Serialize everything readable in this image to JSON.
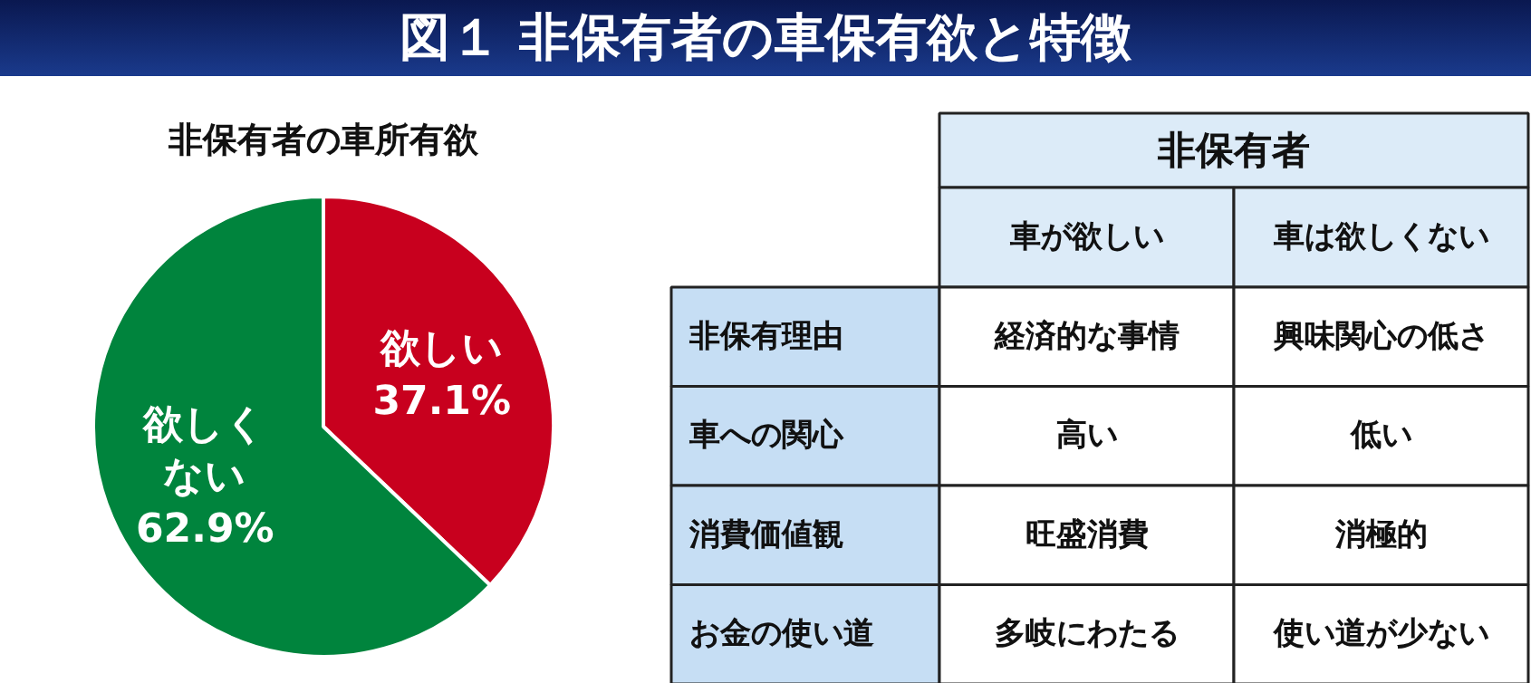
{
  "chart_data": [
    {
      "type": "pie",
      "title": "図１  非保有者の車保有欲と特徴",
      "subtitle": "非保有者の車所有欲",
      "categories": [
        "欲しい",
        "欲しくない"
      ],
      "values": [
        37.1,
        62.9
      ],
      "colors": [
        "#c8001e",
        "#00843d"
      ],
      "value_labels": [
        "37.1%",
        "62.9%"
      ]
    },
    {
      "type": "other",
      "title": "非保有者",
      "categories": [
        "車が欲しい",
        "車は欲しくない"
      ],
      "y_categories": [
        "非保有理由",
        "車への関心",
        "消費価値観",
        "お金の使い道"
      ],
      "cell_labels": [
        [
          "経済的な事情",
          "興味関心の低さ"
        ],
        [
          "高い",
          "低い"
        ],
        [
          "旺盛消費",
          "消極的"
        ],
        [
          "多岐にわたる",
          "使い道が少ない"
        ]
      ]
    }
  ]
}
